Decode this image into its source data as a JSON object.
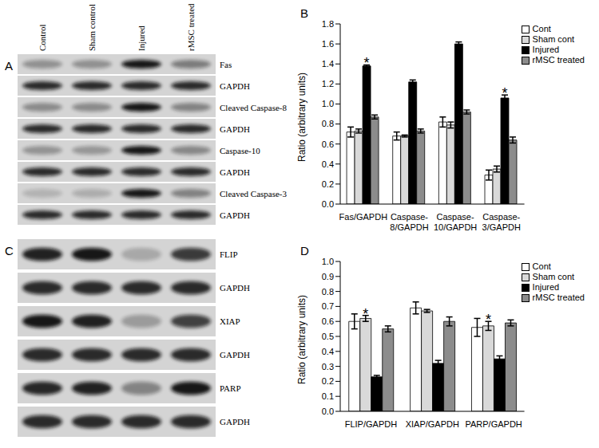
{
  "chart_data": [
    {
      "type": "bar",
      "title": "B",
      "y_label": "Ratio (arbitrary units)",
      "categories": [
        "Fas/GAPDH",
        "Caspase-8/GAPDH",
        "Caspase-10/GAPDH",
        "Caspase-3/GAPDH"
      ],
      "series": [
        {
          "name": "Cont",
          "color": "#ffffff",
          "values": [
            0.72,
            0.68,
            0.82,
            0.29
          ],
          "errors": [
            0.05,
            0.04,
            0.05,
            0.05
          ]
        },
        {
          "name": "Sham cont",
          "color": "#d9d9d9",
          "values": [
            0.73,
            0.68,
            0.79,
            0.35
          ],
          "errors": [
            0.02,
            0.01,
            0.03,
            0.03
          ]
        },
        {
          "name": "Injured",
          "color": "#000000",
          "values": [
            1.38,
            1.22,
            1.6,
            1.06
          ],
          "errors": [
            0.01,
            0.02,
            0.02,
            0.03
          ]
        },
        {
          "name": "rMSC treated",
          "color": "#8c8c8c",
          "values": [
            0.87,
            0.73,
            0.92,
            0.64
          ],
          "errors": [
            0.02,
            0.02,
            0.02,
            0.03
          ]
        }
      ],
      "ylim": [
        0,
        1.8
      ],
      "yticks": [
        {
          "value": 0,
          "label": "0.0"
        },
        0.2,
        0.4,
        0.6,
        0.8,
        {
          "value": 1,
          "label": "1.0"
        },
        1.2,
        1.4,
        1.6,
        1.8
      ],
      "legend": "upper right",
      "annotations": [
        {
          "text": "*",
          "category": "Fas/GAPDH",
          "series": "Injured"
        },
        {
          "text": "*",
          "category": "Caspase-3/GAPDH",
          "series": "Injured"
        }
      ]
    },
    {
      "type": "bar",
      "title": "D",
      "y_label": "Ratio (arbitrary units)",
      "categories": [
        "FLIP/GAPDH",
        "XIAP/GAPDH",
        "PARP/GAPDH"
      ],
      "series": [
        {
          "name": "Cont",
          "color": "#ffffff",
          "values": [
            0.6,
            0.69,
            0.56
          ],
          "errors": [
            0.05,
            0.04,
            0.06
          ]
        },
        {
          "name": "Sham cont",
          "color": "#d9d9d9",
          "values": [
            0.62,
            0.67,
            0.57
          ],
          "errors": [
            0.02,
            0.01,
            0.03
          ]
        },
        {
          "name": "Injured",
          "color": "#000000",
          "values": [
            0.23,
            0.32,
            0.35
          ],
          "errors": [
            0.01,
            0.02,
            0.02
          ]
        },
        {
          "name": "rMSC treated",
          "color": "#8c8c8c",
          "values": [
            0.55,
            0.6,
            0.59
          ],
          "errors": [
            0.02,
            0.03,
            0.02
          ]
        }
      ],
      "ylim": [
        0,
        1.0
      ],
      "yticks": [
        {
          "value": 0,
          "label": "0.0"
        },
        0.1,
        0.2,
        0.3,
        0.4,
        0.5,
        0.6,
        0.7,
        0.8,
        0.9,
        {
          "value": 1,
          "label": "1.0"
        }
      ],
      "legend": "upper right",
      "annotations": [
        {
          "text": "*",
          "category": "FLIP/GAPDH",
          "series": "Sham cont"
        },
        {
          "text": "*",
          "category": "PARP/GAPDH",
          "series": "Sham cont"
        }
      ]
    }
  ],
  "blots": [
    {
      "title": "A",
      "lanes": [
        "Control",
        "Sham control",
        "Injured",
        "rMSC treated"
      ],
      "rows": [
        "Fas",
        "GAPDH",
        "Cleaved Caspase-8",
        "GAPDH",
        "Caspase-10",
        "GAPDH",
        "Cleaved Caspase-3",
        "GAPDH"
      ]
    },
    {
      "title": "C",
      "rows": [
        "FLIP",
        "GAPDH",
        "XIAP",
        "GAPDH",
        "PARP",
        "GAPDH"
      ]
    }
  ]
}
